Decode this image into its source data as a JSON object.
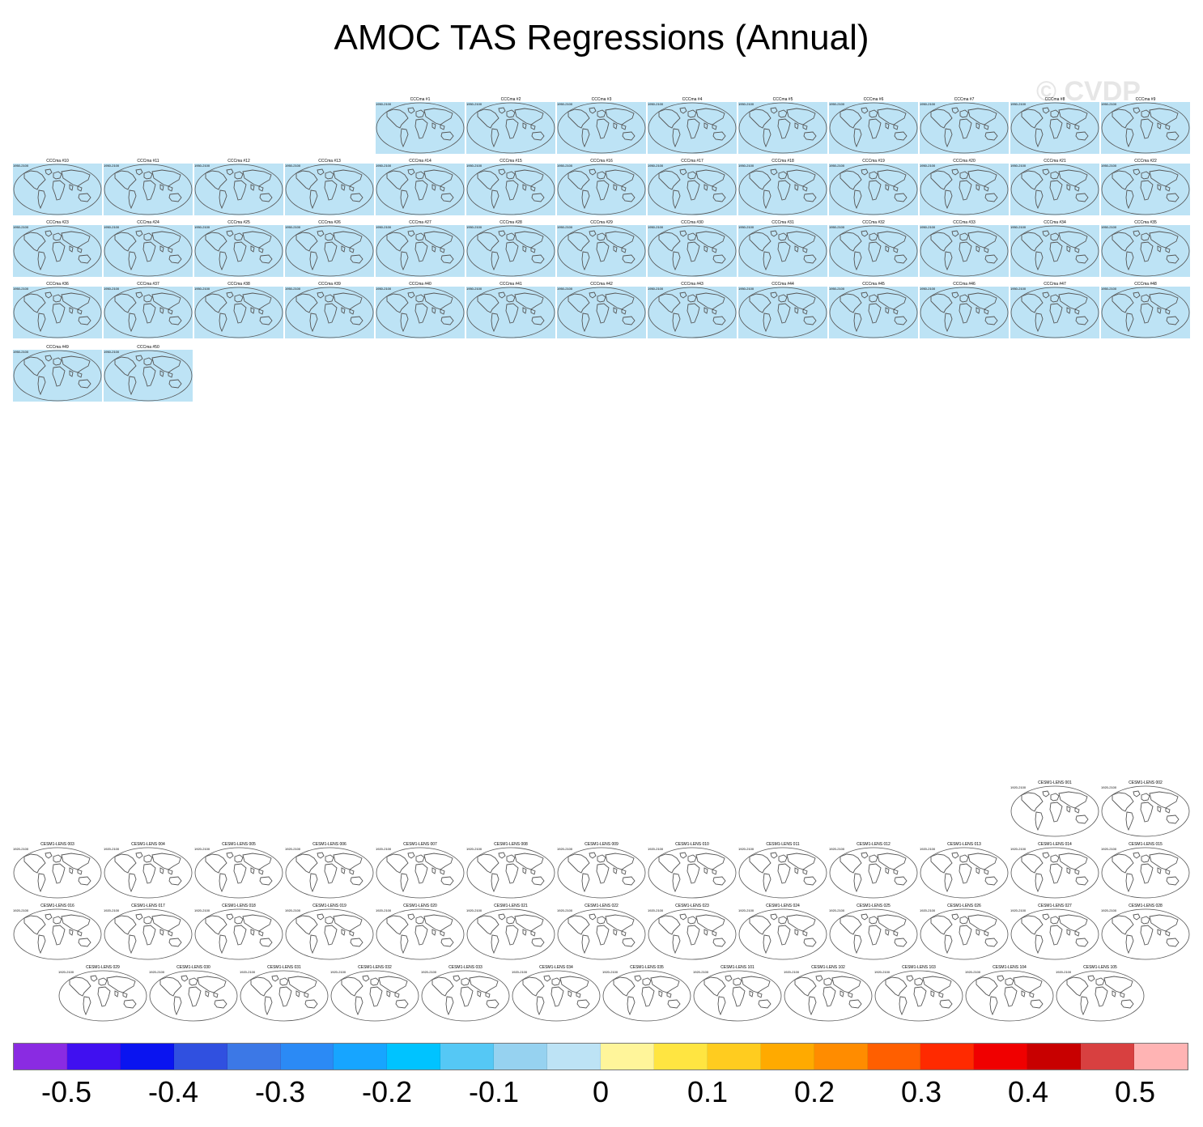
{
  "title": "AMOC TAS Regressions (Annual)",
  "watermark": "© CVDP",
  "panel_groups": [
    {
      "name": "CCCma",
      "years": "1950-2100",
      "fill": "#bde3f5",
      "titles": [
        "CCCma #1",
        "CCCma #2",
        "CCCma #3",
        "CCCma #4",
        "CCCma #5",
        "CCCma #6",
        "CCCma #7",
        "CCCma #8",
        "CCCma #9",
        "CCCma #10",
        "CCCma #11",
        "CCCma #12",
        "CCCma #13",
        "CCCma #14",
        "CCCma #15",
        "CCCma #16",
        "CCCma #17",
        "CCCma #18",
        "CCCma #19",
        "CCCma #20",
        "CCCma #21",
        "CCCma #22",
        "CCCma #23",
        "CCCma #24",
        "CCCma #25",
        "CCCma #26",
        "CCCma #27",
        "CCCma #28",
        "CCCma #29",
        "CCCma #30",
        "CCCma #31",
        "CCCma #32",
        "CCCma #33",
        "CCCma #34",
        "CCCma #35",
        "CCCma #36",
        "CCCma #37",
        "CCCma #38",
        "CCCma #39",
        "CCCma #40",
        "CCCma #41",
        "CCCma #42",
        "CCCma #43",
        "CCCma #44",
        "CCCma #45",
        "CCCma #46",
        "CCCma #47",
        "CCCma #48",
        "CCCma #49",
        "CCCma #50"
      ]
    },
    {
      "name": "CESM1-LENS",
      "years": "1920-2100",
      "fill": "#ffffff",
      "titles": [
        "CESM1-LENS 001",
        "CESM1-LENS 002",
        "CESM1-LENS 003",
        "CESM1-LENS 004",
        "CESM1-LENS 005",
        "CESM1-LENS 006",
        "CESM1-LENS 007",
        "CESM1-LENS 008",
        "CESM1-LENS 009",
        "CESM1-LENS 010",
        "CESM1-LENS 011",
        "CESM1-LENS 012",
        "CESM1-LENS 013",
        "CESM1-LENS 014",
        "CESM1-LENS 015",
        "CESM1-LENS 016",
        "CESM1-LENS 017",
        "CESM1-LENS 018",
        "CESM1-LENS 019",
        "CESM1-LENS 020",
        "CESM1-LENS 021",
        "CESM1-LENS 022",
        "CESM1-LENS 023",
        "CESM1-LENS 024",
        "CESM1-LENS 025",
        "CESM1-LENS 026",
        "CESM1-LENS 027",
        "CESM1-LENS 028",
        "CESM1-LENS 029",
        "CESM1-LENS 030",
        "CESM1-LENS 031",
        "CESM1-LENS 032",
        "CESM1-LENS 033",
        "CESM1-LENS 034",
        "CESM1-LENS 035",
        "CESM1-LENS 101",
        "CESM1-LENS 102",
        "CESM1-LENS 103",
        "CESM1-LENS 104",
        "CESM1-LENS 105"
      ]
    }
  ],
  "colorbar": {
    "colors": [
      "#8a2be2",
      "#4010f0",
      "#0a14f0",
      "#3050e0",
      "#3c78e6",
      "#2b8af5",
      "#17a5ff",
      "#00c3ff",
      "#55c8f5",
      "#96d2f0",
      "#bde3f5",
      "#fff59a",
      "#ffe541",
      "#ffcc1f",
      "#ffaa00",
      "#ff8c00",
      "#ff5f00",
      "#ff2a00",
      "#f00000",
      "#c80000",
      "#d84040",
      "#ffb4b4"
    ],
    "labels": [
      "-0.5",
      "-0.4",
      "-0.3",
      "-0.2",
      "-0.1",
      "0",
      "0.1",
      "0.2",
      "0.3",
      "0.4",
      "0.5"
    ]
  }
}
